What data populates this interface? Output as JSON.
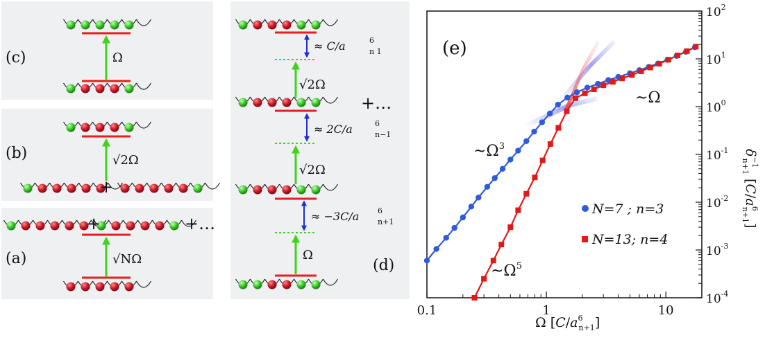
{
  "panels": {
    "a": {
      "label": "(a)",
      "coupling": "√NΩ",
      "plus1": "+",
      "plus2": "+…"
    },
    "b": {
      "label": "(b)",
      "coupling": "√2Ω",
      "plus": "+"
    },
    "c": {
      "label": "(c)",
      "coupling": "Ω"
    },
    "d": {
      "label": "(d)",
      "couplings": [
        "√2Ω",
        "√2Ω",
        "Ω"
      ],
      "detunings": [
        "≈ C/a",
        "≈ 2C/a",
        "≈ −3C/a"
      ],
      "detuning_sup": "6",
      "detuning_subs": [
        "n  1",
        "n−1",
        "n+1"
      ],
      "plus": "+…"
    },
    "e": {
      "label": "(e)"
    }
  },
  "colors": {
    "atom_red": "#c0162b",
    "atom_green": "#39c427",
    "level_line": "#e61e1e",
    "arrow_green": "#41d21e",
    "arrow_blue": "#1e2ad6",
    "panel_bg": "#eef0f2",
    "series_blue": "#2e5bd9",
    "series_red": "#e01a1a",
    "annot_purple": "#9a3fd0"
  },
  "chart_data": {
    "type": "scatter",
    "title": "",
    "xlabel": "Ω [C/a6n+1]",
    "ylabel": "δn+1−1 [C/a6n+1]",
    "xscale": "log",
    "yscale": "log",
    "xlim": [
      0.1,
      20
    ],
    "ylim": [
      0.0001,
      100
    ],
    "xticks": [
      "0.1",
      "1",
      "10"
    ],
    "yticks": [
      "10-4",
      "10-3",
      "10-2",
      "10-1",
      "100",
      "101",
      "102"
    ],
    "legend": "center-right",
    "annotations": [
      "~Ω3",
      "~Ω5",
      "~Ω"
    ],
    "series": [
      {
        "name": "N=7 ; n=3",
        "marker": "circle",
        "x": [
          0.1,
          0.12,
          0.145,
          0.17,
          0.2,
          0.235,
          0.27,
          0.32,
          0.37,
          0.43,
          0.5,
          0.58,
          0.68,
          0.79,
          0.92,
          1.07,
          1.25,
          1.5,
          1.8,
          2.2,
          2.7,
          3.3,
          4.0,
          5.0,
          6.0,
          7.2,
          8.6,
          10.3,
          12.3,
          14.7,
          17.5
        ],
        "y": [
          0.0006,
          0.00105,
          0.0018,
          0.0029,
          0.0048,
          0.0081,
          0.0125,
          0.021,
          0.032,
          0.05,
          0.078,
          0.12,
          0.19,
          0.3,
          0.47,
          0.72,
          1.1,
          1.55,
          2.0,
          2.5,
          3.0,
          3.6,
          4.2,
          5.0,
          5.8,
          6.8,
          8.0,
          9.5,
          11.5,
          14.0,
          17.5
        ]
      },
      {
        "name": "N=13; n=4",
        "marker": "square",
        "x": [
          0.25,
          0.3,
          0.36,
          0.42,
          0.5,
          0.58,
          0.68,
          0.8,
          0.93,
          1.08,
          1.26,
          1.48,
          1.75,
          2.1,
          2.5,
          3.0,
          3.6,
          4.3,
          5.2,
          6.2,
          7.4,
          8.8,
          10.5,
          12.5,
          15.0,
          17.8
        ],
        "y": [
          0.0001,
          0.00025,
          0.0006,
          0.0013,
          0.003,
          0.0068,
          0.015,
          0.033,
          0.075,
          0.165,
          0.36,
          0.8,
          1.5,
          1.9,
          2.3,
          2.8,
          3.3,
          3.9,
          4.6,
          5.5,
          6.6,
          7.9,
          9.6,
          11.8,
          14.5,
          18.0
        ]
      }
    ]
  }
}
